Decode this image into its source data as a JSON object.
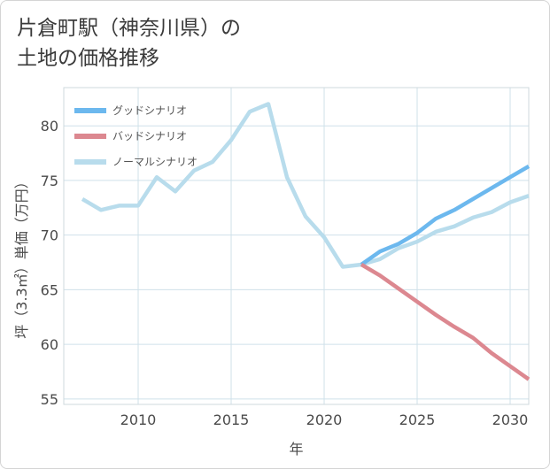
{
  "title_lines": [
    "片倉町駅（神奈川県）の",
    "土地の価格推移"
  ],
  "chart_data": {
    "type": "line",
    "xlabel": "年",
    "ylabel": "坪（3.3㎡）単価（万円）",
    "xlim": [
      2006,
      2031
    ],
    "ylim": [
      54.5,
      83.5
    ],
    "xticks": [
      2010,
      2015,
      2020,
      2025,
      2030
    ],
    "yticks": [
      55,
      60,
      65,
      70,
      75,
      80
    ],
    "grid": true,
    "legend_position": "top-left",
    "series": [
      {
        "name": "グッドシナリオ",
        "color": "#6cb8ee",
        "x": [
          2022,
          2023,
          2024,
          2025,
          2026,
          2027,
          2028,
          2029,
          2030,
          2031
        ],
        "values": [
          67.3,
          68.5,
          69.2,
          70.2,
          71.5,
          72.3,
          73.3,
          74.3,
          75.3,
          76.3
        ]
      },
      {
        "name": "バッドシナリオ",
        "color": "#dc8890",
        "x": [
          2022,
          2023,
          2024,
          2025,
          2026,
          2027,
          2028,
          2029,
          2030,
          2031
        ],
        "values": [
          67.3,
          66.3,
          65.1,
          63.9,
          62.7,
          61.6,
          60.6,
          59.2,
          58.0,
          56.8
        ]
      },
      {
        "name": "ノーマルシナリオ",
        "color": "#b8dcec",
        "x": [
          2007,
          2008,
          2009,
          2010,
          2011,
          2012,
          2013,
          2014,
          2015,
          2016,
          2017,
          2018,
          2019,
          2020,
          2021,
          2022,
          2023,
          2024,
          2025,
          2026,
          2027,
          2028,
          2029,
          2030,
          2031
        ],
        "values": [
          73.3,
          72.3,
          72.7,
          72.7,
          75.3,
          74.0,
          75.9,
          76.7,
          78.7,
          81.3,
          82.0,
          75.3,
          71.7,
          69.8,
          67.1,
          67.3,
          67.8,
          68.8,
          69.4,
          70.3,
          70.8,
          71.6,
          72.1,
          73.0,
          73.6
        ]
      }
    ]
  }
}
